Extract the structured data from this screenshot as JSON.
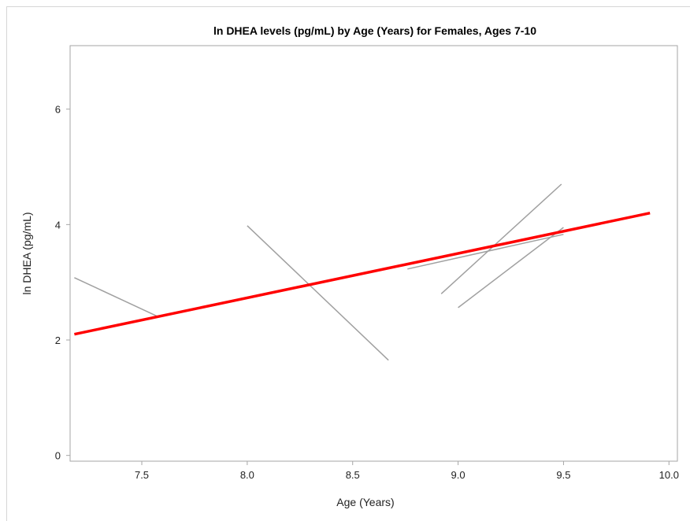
{
  "chart_data": {
    "type": "line",
    "title": "ln DHEA levels (pg/mL) by Age (Years) for Females, Ages 7-10",
    "xlabel": "Age (Years)",
    "ylabel": "ln DHEA (pg/mL)",
    "xlim": [
      7.16,
      10.04
    ],
    "ylim": [
      -0.1,
      7.1
    ],
    "xticks": [
      "7.5",
      "8.0",
      "8.5",
      "9.0",
      "9.5",
      "10.0"
    ],
    "yticks": [
      "0",
      "2",
      "4",
      "6"
    ],
    "grid": false,
    "legend": "none",
    "colors": {
      "individual": "#a0a0a0",
      "fit": "#ff0000",
      "axis": "#a6a6a6"
    },
    "series": [
      {
        "role": "individual",
        "x": [
          7.18,
          7.58
        ],
        "y": [
          3.08,
          2.4
        ]
      },
      {
        "role": "individual",
        "x": [
          8.0,
          8.67
        ],
        "y": [
          3.98,
          1.65
        ]
      },
      {
        "role": "individual",
        "x": [
          8.76,
          9.5
        ],
        "y": [
          3.23,
          3.83
        ]
      },
      {
        "role": "individual",
        "x": [
          8.92,
          9.49
        ],
        "y": [
          2.8,
          4.7
        ]
      },
      {
        "role": "individual",
        "x": [
          9.0,
          9.5
        ],
        "y": [
          2.56,
          3.95
        ]
      },
      {
        "role": "fit",
        "x": [
          7.18,
          9.91
        ],
        "y": [
          2.1,
          4.2
        ]
      }
    ]
  }
}
